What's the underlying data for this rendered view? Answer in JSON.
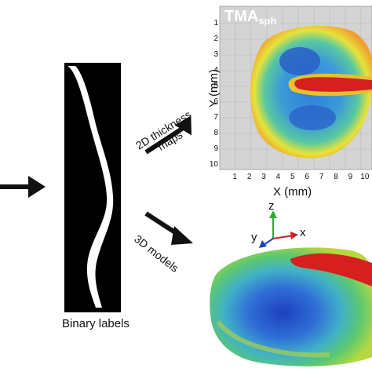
{
  "binary_labels": {
    "caption": "Binary labels"
  },
  "thickness_map": {
    "title_main": "TMA",
    "title_sub": "sph",
    "ylabel": "Y (mm)",
    "xlabel": "X (mm)",
    "y_ticks": [
      "1",
      "2",
      "3",
      "4",
      "5",
      "6",
      "7",
      "8",
      "9",
      "10"
    ],
    "x_ticks": [
      "1",
      "2",
      "3",
      "4",
      "5",
      "6",
      "7",
      "8",
      "9",
      "10"
    ]
  },
  "arrows": {
    "upper_label_line1": "2D thickness",
    "upper_label_line2": "maps",
    "lower_label": "3D models"
  },
  "axes_3d": {
    "z": "z",
    "y": "y",
    "x": "x"
  },
  "colors": {
    "arrow": "#111111",
    "map_background": "#d4d4d4",
    "hot": "#d61f1f",
    "cold": "#2546c8"
  }
}
